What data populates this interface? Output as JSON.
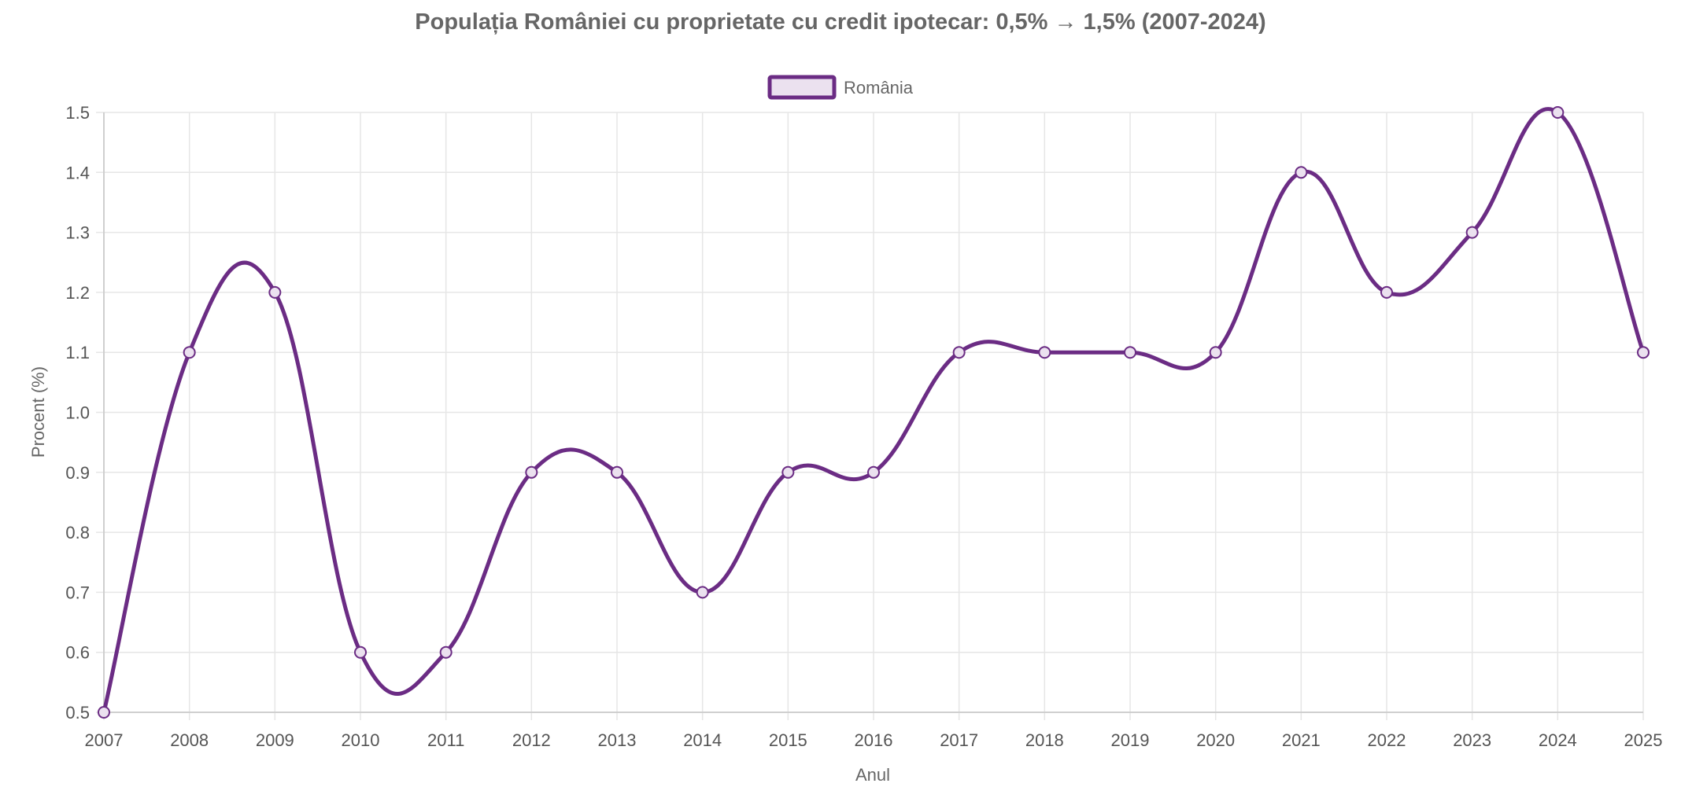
{
  "chart_data": {
    "type": "line",
    "title": "Populația României cu proprietate cu credit ipotecar: 0,5% → 1,5% (2007-2024)",
    "xlabel": "Anul",
    "ylabel": "Procent (%)",
    "categories": [
      "2007",
      "2008",
      "2009",
      "2010",
      "2011",
      "2012",
      "2013",
      "2014",
      "2015",
      "2016",
      "2017",
      "2018",
      "2019",
      "2020",
      "2021",
      "2022",
      "2023",
      "2024",
      "2025"
    ],
    "series": [
      {
        "name": "România",
        "values": [
          0.5,
          1.1,
          1.2,
          0.6,
          0.6,
          0.9,
          0.9,
          0.7,
          0.9,
          0.9,
          1.1,
          1.1,
          1.1,
          1.1,
          1.4,
          1.2,
          1.3,
          1.5,
          1.1
        ]
      }
    ],
    "ylim": [
      0.5,
      1.5
    ],
    "yticks": [
      "0.5",
      "0.6",
      "0.7",
      "0.8",
      "0.9",
      "1.0",
      "1.1",
      "1.2",
      "1.3",
      "1.4",
      "1.5"
    ],
    "grid": true,
    "legend_position": "top-center"
  },
  "colors": {
    "line": "#6b2c84",
    "legend_fill": "#ebe1ef",
    "point_fill": "#ebe1ef"
  }
}
